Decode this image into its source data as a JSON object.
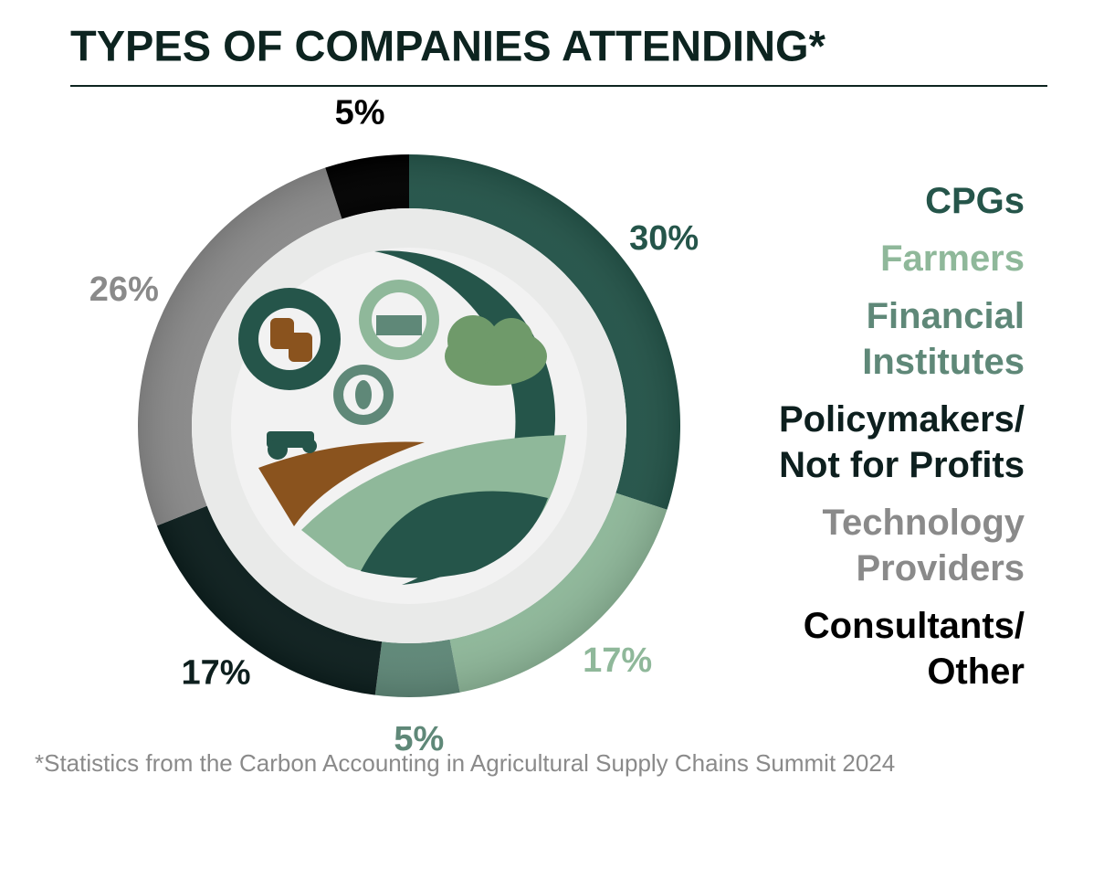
{
  "chart_data": {
    "type": "donut",
    "title": "TYPES OF COMPANIES ATTENDING*",
    "footnote": "*Statistics from the Carbon Accounting in Agricultural Supply Chains Summit 2024",
    "categories": [
      "CPGs",
      "Farmers",
      "Financial Institutes",
      "Policymakers/ Not for Profits",
      "Technology Providers",
      "Consultants/ Other"
    ],
    "values": [
      30,
      17,
      5,
      17,
      26,
      5
    ],
    "value_labels": [
      "30%",
      "17%",
      "5%",
      "17%",
      "26%",
      "5%"
    ],
    "colors": [
      "#25554a",
      "#8fb89a",
      "#5f8878",
      "#0d1f1e",
      "#8a8a8a",
      "#000000"
    ],
    "legend": "right"
  }
}
